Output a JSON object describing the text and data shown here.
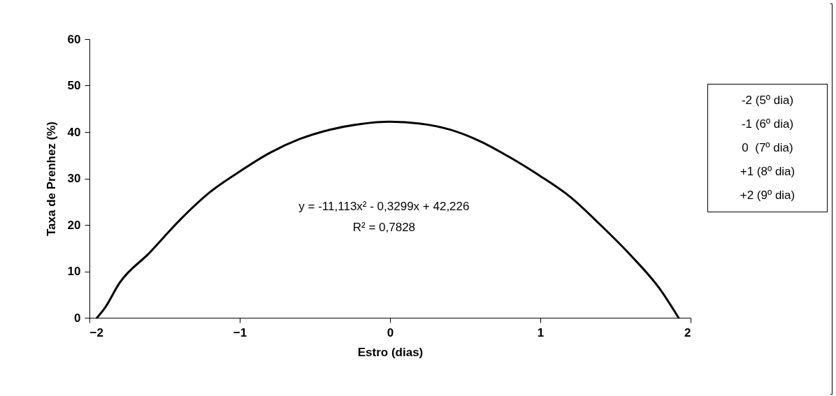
{
  "chart_data": {
    "type": "line",
    "xlabel": "Estro (dias)",
    "ylabel": "Taxa de Prenhez (%)",
    "x": [
      -1.95,
      -1.9,
      -1.8,
      -1.6,
      -1.4,
      -1.2,
      -1.0,
      -0.8,
      -0.6,
      -0.4,
      -0.2,
      0.0,
      0.2,
      0.4,
      0.6,
      0.8,
      1.0,
      1.2,
      1.4,
      1.6,
      1.8,
      1.92
    ],
    "series": [
      {
        "color": "#000000",
        "values": [
          0,
          2,
          7.5,
          14,
          21,
          27,
          31.5,
          35.5,
          38.5,
          40.5,
          41.7,
          42.2,
          41.8,
          40.5,
          38,
          34.5,
          30.5,
          26,
          20,
          13.5,
          6,
          0
        ]
      }
    ],
    "xlim": [
      -2,
      2
    ],
    "xticks": [
      -2,
      -1,
      0,
      1,
      2
    ],
    "ylim": [
      0,
      60
    ],
    "yticks": [
      0,
      10,
      20,
      30,
      40,
      50,
      60
    ],
    "annotations": [
      "y = -11,113x² - 0,3299x + 42,226",
      "R² = 0,7828",
      "-2 (5º dia)",
      "-1 (6º dia)",
      "0  (7º dia)",
      "+1 (8º dia)",
      "+2 (9º dia)"
    ]
  }
}
